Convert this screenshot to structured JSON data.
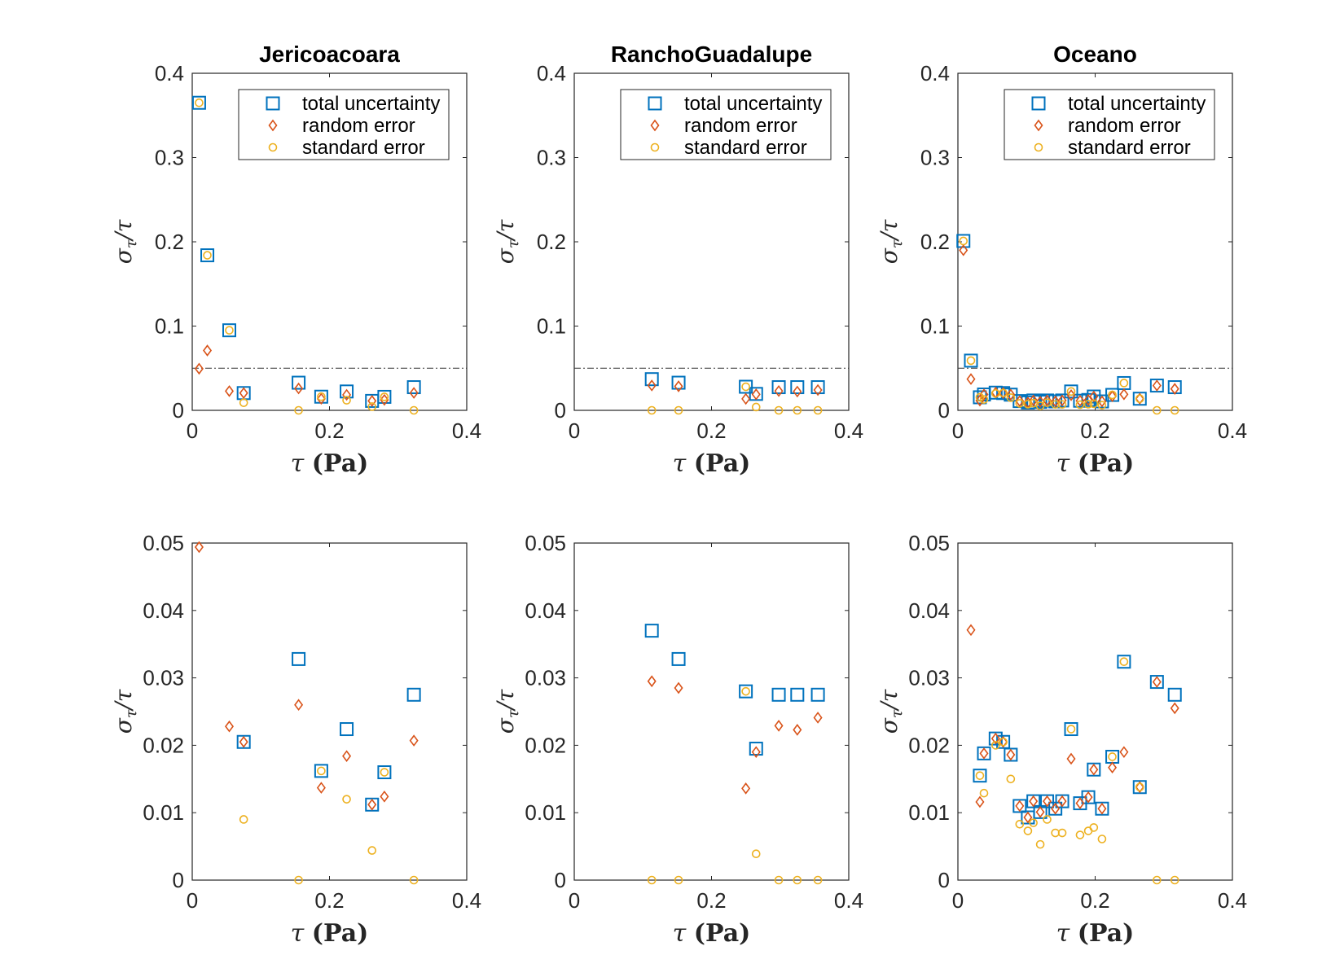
{
  "chart_data": [
    {
      "type": "scatter",
      "title": "Jericoacoara",
      "xlabel": "τ (Pa)",
      "ylabel": "στ/τ",
      "xlim": [
        0,
        0.4
      ],
      "ylim": [
        0,
        0.4
      ],
      "xticks": [
        "0",
        "0.2",
        "0.4"
      ],
      "yticks": [
        "0",
        "0.1",
        "0.2",
        "0.3",
        "0.4"
      ],
      "reference_line": 0.05,
      "legend": true,
      "legend_position": "top-right",
      "series": [
        {
          "name": "total uncertainty",
          "marker": "square",
          "color": "#0072BD",
          "x": [
            0.01,
            0.022,
            0.054,
            0.075,
            0.155,
            0.188,
            0.225,
            0.262,
            0.28,
            0.323
          ],
          "y": [
            0.365,
            0.184,
            0.095,
            0.0205,
            0.0328,
            0.0162,
            0.0224,
            0.0112,
            0.016,
            0.0275
          ]
        },
        {
          "name": "random error",
          "marker": "diamond",
          "color": "#D95319",
          "x": [
            0.01,
            0.022,
            0.054,
            0.075,
            0.155,
            0.188,
            0.225,
            0.262,
            0.28,
            0.323
          ],
          "y": [
            0.0494,
            0.071,
            0.0228,
            0.0205,
            0.026,
            0.0137,
            0.0184,
            0.0112,
            0.0124,
            0.0207
          ]
        },
        {
          "name": "standard error",
          "marker": "circle",
          "color": "#EDB120",
          "x": [
            0.01,
            0.022,
            0.054,
            0.075,
            0.155,
            0.188,
            0.225,
            0.262,
            0.28,
            0.323
          ],
          "y": [
            0.365,
            0.184,
            0.095,
            0.009,
            0.0,
            0.0162,
            0.012,
            0.0044,
            0.016,
            0.0
          ]
        }
      ]
    },
    {
      "type": "scatter",
      "title": "RanchoGuadalupe",
      "xlabel": "τ (Pa)",
      "ylabel": "στ/τ",
      "xlim": [
        0,
        0.4
      ],
      "ylim": [
        0,
        0.4
      ],
      "xticks": [
        "0",
        "0.2",
        "0.4"
      ],
      "yticks": [
        "0",
        "0.1",
        "0.2",
        "0.3",
        "0.4"
      ],
      "reference_line": 0.05,
      "legend": true,
      "legend_position": "top-right",
      "series": [
        {
          "name": "total uncertainty",
          "marker": "square",
          "color": "#0072BD",
          "x": [
            0.113,
            0.152,
            0.25,
            0.265,
            0.298,
            0.325,
            0.355
          ],
          "y": [
            0.037,
            0.0328,
            0.028,
            0.0195,
            0.0275,
            0.0275,
            0.0275
          ]
        },
        {
          "name": "random error",
          "marker": "diamond",
          "color": "#D95319",
          "x": [
            0.113,
            0.152,
            0.25,
            0.265,
            0.298,
            0.325,
            0.355
          ],
          "y": [
            0.0295,
            0.0285,
            0.0136,
            0.019,
            0.0229,
            0.0223,
            0.0241
          ]
        },
        {
          "name": "standard error",
          "marker": "circle",
          "color": "#EDB120",
          "x": [
            0.113,
            0.152,
            0.25,
            0.265,
            0.298,
            0.325,
            0.355
          ],
          "y": [
            0.0,
            0.0,
            0.028,
            0.0039,
            0.0,
            0.0,
            0.0
          ]
        }
      ]
    },
    {
      "type": "scatter",
      "title": "Oceano",
      "xlabel": "τ (Pa)",
      "ylabel": "στ/τ",
      "xlim": [
        0,
        0.4
      ],
      "ylim": [
        0,
        0.4
      ],
      "xticks": [
        "0",
        "0.2",
        "0.4"
      ],
      "yticks": [
        "0",
        "0.1",
        "0.2",
        "0.3",
        "0.4"
      ],
      "reference_line": 0.05,
      "legend": true,
      "legend_position": "top-right",
      "series": [
        {
          "name": "total uncertainty",
          "marker": "square",
          "color": "#0072BD",
          "x": [
            0.008,
            0.019,
            0.032,
            0.038,
            0.055,
            0.066,
            0.077,
            0.09,
            0.102,
            0.11,
            0.12,
            0.13,
            0.142,
            0.152,
            0.165,
            0.178,
            0.19,
            0.198,
            0.21,
            0.225,
            0.242,
            0.265,
            0.29,
            0.316
          ],
          "y": [
            0.201,
            0.059,
            0.0155,
            0.0188,
            0.021,
            0.0205,
            0.0186,
            0.011,
            0.0093,
            0.0117,
            0.0101,
            0.0117,
            0.0106,
            0.0117,
            0.0224,
            0.0114,
            0.0123,
            0.0164,
            0.0106,
            0.0183,
            0.0324,
            0.0138,
            0.0294,
            0.0275
          ]
        },
        {
          "name": "random error",
          "marker": "diamond",
          "color": "#D95319",
          "x": [
            0.008,
            0.019,
            0.032,
            0.038,
            0.055,
            0.066,
            0.077,
            0.09,
            0.102,
            0.11,
            0.12,
            0.13,
            0.142,
            0.152,
            0.165,
            0.178,
            0.19,
            0.198,
            0.21,
            0.225,
            0.242,
            0.265,
            0.29,
            0.316
          ],
          "y": [
            0.19,
            0.0371,
            0.0116,
            0.0188,
            0.021,
            0.0205,
            0.0186,
            0.011,
            0.0093,
            0.0117,
            0.0101,
            0.0117,
            0.0106,
            0.0117,
            0.018,
            0.0114,
            0.0123,
            0.0164,
            0.0106,
            0.0167,
            0.019,
            0.0138,
            0.0294,
            0.0255
          ]
        },
        {
          "name": "standard error",
          "marker": "circle",
          "color": "#EDB120",
          "x": [
            0.008,
            0.019,
            0.032,
            0.038,
            0.055,
            0.066,
            0.077,
            0.09,
            0.102,
            0.11,
            0.12,
            0.13,
            0.142,
            0.152,
            0.165,
            0.178,
            0.19,
            0.198,
            0.21,
            0.225,
            0.242,
            0.265,
            0.29,
            0.316
          ],
          "y": [
            0.201,
            0.059,
            0.0155,
            0.0129,
            0.02,
            0.0205,
            0.015,
            0.0083,
            0.0073,
            0.0085,
            0.0053,
            0.009,
            0.007,
            0.007,
            0.0224,
            0.0067,
            0.0073,
            0.0078,
            0.0061,
            0.0183,
            0.0324,
            0.0138,
            0.0,
            0.0
          ]
        }
      ]
    },
    {
      "type": "scatter",
      "title": "",
      "xlabel": "τ (Pa)",
      "ylabel": "στ/τ",
      "xlim": [
        0,
        0.4
      ],
      "ylim": [
        0,
        0.05
      ],
      "xticks": [
        "0",
        "0.2",
        "0.4"
      ],
      "yticks": [
        "0",
        "0.01",
        "0.02",
        "0.03",
        "0.04",
        "0.05"
      ],
      "legend": false,
      "series": [
        {
          "name": "total uncertainty",
          "marker": "square",
          "color": "#0072BD",
          "x": [
            0.075,
            0.155,
            0.188,
            0.225,
            0.262,
            0.28,
            0.323
          ],
          "y": [
            0.0205,
            0.0328,
            0.0162,
            0.0224,
            0.0112,
            0.016,
            0.0275
          ]
        },
        {
          "name": "random error",
          "marker": "diamond",
          "color": "#D95319",
          "x": [
            0.01,
            0.054,
            0.075,
            0.155,
            0.188,
            0.225,
            0.262,
            0.28,
            0.323
          ],
          "y": [
            0.0494,
            0.0228,
            0.0205,
            0.026,
            0.0137,
            0.0184,
            0.0112,
            0.0124,
            0.0207
          ]
        },
        {
          "name": "standard error",
          "marker": "circle",
          "color": "#EDB120",
          "x": [
            0.075,
            0.155,
            0.188,
            0.225,
            0.262,
            0.28,
            0.323
          ],
          "y": [
            0.009,
            0.0,
            0.0162,
            0.012,
            0.0044,
            0.016,
            0.0
          ]
        }
      ]
    },
    {
      "type": "scatter",
      "title": "",
      "xlabel": "τ (Pa)",
      "ylabel": "στ/τ",
      "xlim": [
        0,
        0.4
      ],
      "ylim": [
        0,
        0.05
      ],
      "xticks": [
        "0",
        "0.2",
        "0.4"
      ],
      "yticks": [
        "0",
        "0.01",
        "0.02",
        "0.03",
        "0.04",
        "0.05"
      ],
      "legend": false,
      "series": [
        {
          "name": "total uncertainty",
          "marker": "square",
          "color": "#0072BD",
          "x": [
            0.113,
            0.152,
            0.25,
            0.265,
            0.298,
            0.325,
            0.355
          ],
          "y": [
            0.037,
            0.0328,
            0.028,
            0.0195,
            0.0275,
            0.0275,
            0.0275
          ]
        },
        {
          "name": "random error",
          "marker": "diamond",
          "color": "#D95319",
          "x": [
            0.113,
            0.152,
            0.25,
            0.265,
            0.298,
            0.325,
            0.355
          ],
          "y": [
            0.0295,
            0.0285,
            0.0136,
            0.019,
            0.0229,
            0.0223,
            0.0241
          ]
        },
        {
          "name": "standard error",
          "marker": "circle",
          "color": "#EDB120",
          "x": [
            0.113,
            0.152,
            0.25,
            0.265,
            0.298,
            0.325,
            0.355
          ],
          "y": [
            0.0,
            0.0,
            0.028,
            0.0039,
            0.0,
            0.0,
            0.0
          ]
        }
      ]
    },
    {
      "type": "scatter",
      "title": "",
      "xlabel": "τ (Pa)",
      "ylabel": "στ/τ",
      "xlim": [
        0,
        0.4
      ],
      "ylim": [
        0,
        0.05
      ],
      "xticks": [
        "0",
        "0.2",
        "0.4"
      ],
      "yticks": [
        "0",
        "0.01",
        "0.02",
        "0.03",
        "0.04",
        "0.05"
      ],
      "legend": false,
      "series": [
        {
          "name": "total uncertainty",
          "marker": "square",
          "color": "#0072BD",
          "x": [
            0.032,
            0.038,
            0.055,
            0.066,
            0.077,
            0.09,
            0.102,
            0.11,
            0.12,
            0.13,
            0.142,
            0.152,
            0.165,
            0.178,
            0.19,
            0.198,
            0.21,
            0.225,
            0.242,
            0.265,
            0.29,
            0.316
          ],
          "y": [
            0.0155,
            0.0188,
            0.021,
            0.0205,
            0.0186,
            0.011,
            0.0093,
            0.0117,
            0.0101,
            0.0117,
            0.0106,
            0.0117,
            0.0224,
            0.0114,
            0.0123,
            0.0164,
            0.0106,
            0.0183,
            0.0324,
            0.0138,
            0.0294,
            0.0275
          ]
        },
        {
          "name": "random error",
          "marker": "diamond",
          "color": "#D95319",
          "x": [
            0.019,
            0.032,
            0.038,
            0.055,
            0.066,
            0.077,
            0.09,
            0.102,
            0.11,
            0.12,
            0.13,
            0.142,
            0.152,
            0.165,
            0.178,
            0.19,
            0.198,
            0.21,
            0.225,
            0.242,
            0.265,
            0.29,
            0.316
          ],
          "y": [
            0.0371,
            0.0116,
            0.0188,
            0.021,
            0.0205,
            0.0186,
            0.011,
            0.0093,
            0.0117,
            0.0101,
            0.0117,
            0.0106,
            0.0117,
            0.018,
            0.0114,
            0.0123,
            0.0164,
            0.0106,
            0.0167,
            0.019,
            0.0138,
            0.0294,
            0.0255
          ]
        },
        {
          "name": "standard error",
          "marker": "circle",
          "color": "#EDB120",
          "x": [
            0.032,
            0.038,
            0.055,
            0.066,
            0.077,
            0.09,
            0.102,
            0.11,
            0.12,
            0.13,
            0.142,
            0.152,
            0.165,
            0.178,
            0.19,
            0.198,
            0.21,
            0.225,
            0.242,
            0.265,
            0.29,
            0.316
          ],
          "y": [
            0.0155,
            0.0129,
            0.02,
            0.0205,
            0.015,
            0.0083,
            0.0073,
            0.0085,
            0.0053,
            0.009,
            0.007,
            0.007,
            0.0224,
            0.0067,
            0.0073,
            0.0078,
            0.0061,
            0.0183,
            0.0324,
            0.0138,
            0.0,
            0.0
          ]
        }
      ]
    }
  ]
}
